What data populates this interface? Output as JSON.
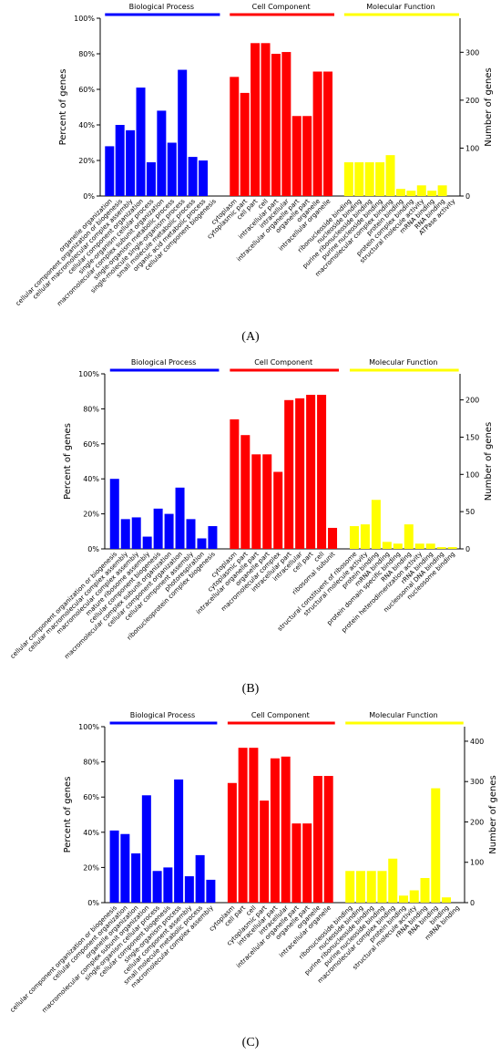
{
  "panels": [
    {
      "label": "(A)"
    },
    {
      "label": "(B)"
    },
    {
      "label": "(C)"
    }
  ],
  "colors": {
    "Biological Process": "#0000ff",
    "Cell Component": "#ff0000",
    "Molecular Function": "#ffff00"
  },
  "chart_data": [
    {
      "type": "bar",
      "panel": "(A)",
      "ylabel": "Percent of genes",
      "y2label": "Number of genes",
      "ylim": [
        0,
        100
      ],
      "yticks": [
        "0%",
        "20%",
        "40%",
        "60%",
        "80%",
        "100%"
      ],
      "y2ticks": [
        "0",
        "100",
        "200",
        "300"
      ],
      "y2max": 371,
      "groups": [
        {
          "name": "Biological Process",
          "color": "#0000ff",
          "categories": [
            "organelle organization",
            "cellular component organization or biogenesis",
            "cellular macromolecular complex assembly",
            "cellular component organization",
            "single-organism cellular process",
            "macromolecular complex subunit organization",
            "single-organism metabolic process",
            "single-molecule single-organism process",
            "small molecule metabolic process",
            "organic acid metabolic process",
            "cellular component biogenesis"
          ],
          "values": [
            28,
            40,
            37,
            61,
            19,
            48,
            30,
            71,
            22,
            20,
            0
          ]
        },
        {
          "name": "Cell Component",
          "color": "#ff0000",
          "categories": [
            "cytoplasm",
            "cytoplasmic part",
            "cell part",
            "cell",
            "intracellular part",
            "intracellular",
            "intracellular organelle part",
            "organelle part",
            "organelle",
            "intracellular organelle"
          ],
          "values": [
            67,
            58,
            86,
            86,
            80,
            81,
            45,
            45,
            70,
            70
          ]
        },
        {
          "name": "Molecular Function",
          "color": "#ffff00",
          "categories": [
            "ribonucleoside binding",
            "nucleoside binding",
            "purine ribonucleoside binding",
            "purine nucleoside binding",
            "macromolecular complex binding",
            "protein binding",
            "protein complex binding",
            "structural molecule activity",
            "mRNA binding",
            "RNA binding",
            "ATPase activity"
          ],
          "values": [
            19,
            19,
            19,
            19,
            23,
            4,
            3,
            6,
            3,
            6,
            0
          ]
        }
      ]
    },
    {
      "type": "bar",
      "panel": "(B)",
      "ylabel": "Percent of genes",
      "y2label": "Number of genes",
      "ylim": [
        0,
        100
      ],
      "yticks": [
        "0%",
        "20%",
        "40%",
        "60%",
        "80%",
        "100%"
      ],
      "y2ticks": [
        "0",
        "50",
        "100",
        "150",
        "200"
      ],
      "y2max": 235,
      "groups": [
        {
          "name": "Biological Process",
          "color": "#0000ff",
          "categories": [
            "cellular component organization or biogenesis",
            "cellular macromolecular complex assembly",
            "macromolecular complex assembly",
            "mature ribosome assembly",
            "cellular component biogenesis",
            "macromolecular complex subunit organization",
            "cellular component organization",
            "cellular component assembly",
            "photorespiration",
            "ribonucleoprotein complex biogenesis"
          ],
          "values": [
            40,
            17,
            18,
            7,
            23,
            20,
            35,
            17,
            6,
            13
          ]
        },
        {
          "name": "Cell Component",
          "color": "#ff0000",
          "categories": [
            "cytoplasm",
            "cytoplasmic part",
            "intracellular organelle part",
            "organelle part",
            "macromolecular complex",
            "intracellular part",
            "intracellular",
            "cell part",
            "cell",
            "ribosomal subunit"
          ],
          "values": [
            74,
            65,
            54,
            54,
            44,
            85,
            86,
            88,
            88,
            12
          ]
        },
        {
          "name": "Molecular Function",
          "color": "#ffff00",
          "categories": [
            "structural constituent of ribosome",
            "structural molecule activity",
            "protein binding",
            "mRNA binding",
            "protein domain specific binding",
            "RNA binding",
            "protein heterodimerization activity",
            "rRNA binding",
            "nucleosomal DNA binding",
            "nucleosome binding"
          ],
          "values": [
            13,
            14,
            28,
            4,
            3,
            14,
            3,
            3,
            1,
            1
          ]
        }
      ]
    },
    {
      "type": "bar",
      "panel": "(C)",
      "ylabel": "Percent of genes",
      "y2label": "Number of genes",
      "ylim": [
        0,
        100
      ],
      "yticks": [
        "0%",
        "20%",
        "40%",
        "60%",
        "80%",
        "100%"
      ],
      "y2ticks": [
        "0",
        "100",
        "200",
        "300",
        "400"
      ],
      "y2max": 436,
      "groups": [
        {
          "name": "Biological Process",
          "color": "#0000ff",
          "categories": [
            "cellular component organization or biogenesis",
            "cellular component organization",
            "organelle organization",
            "macromolecular complex subunit organization",
            "single-organism cellular process",
            "cellular component biogenesis",
            "single-organism process",
            "cellular component assembly",
            "small molecule metabolic process",
            "macromolecular complex assembly"
          ],
          "values": [
            41,
            39,
            28,
            61,
            18,
            20,
            70,
            15,
            27,
            13
          ]
        },
        {
          "name": "Cell Component",
          "color": "#ff0000",
          "categories": [
            "cytoplasm",
            "cell part",
            "cell",
            "cytoplasmic part",
            "intracellular part",
            "intracellular",
            "intracellular organelle part",
            "organelle part",
            "organelle",
            "intracellular organelle"
          ],
          "values": [
            68,
            88,
            88,
            58,
            82,
            83,
            45,
            45,
            72,
            72
          ]
        },
        {
          "name": "Molecular Function",
          "color": "#ffff00",
          "categories": [
            "ribonucleoside binding",
            "nucleoside binding",
            "purine ribonucleoside binding",
            "purine nucleoside binding",
            "macromolecular complex binding",
            "protein binding",
            "structural molecule activity",
            "rRNA binding",
            "RNA binding",
            "binding",
            "mRNA binding"
          ],
          "values": [
            18,
            18,
            18,
            18,
            25,
            4,
            7,
            14,
            65,
            3,
            0
          ]
        }
      ]
    }
  ]
}
